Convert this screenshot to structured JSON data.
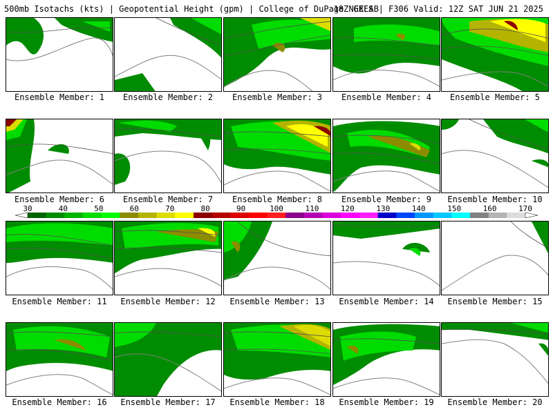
{
  "header": {
    "left": "500mb Isotachs (kts) | Geopotential Height (gpm) | College of DuPage NEXLAB",
    "right": "18Z GEFS | F306 Valid: 12Z SAT JUN 21 2025"
  },
  "colorbar": {
    "tick_labels": [
      "30",
      "40",
      "50",
      "60",
      "70",
      "80",
      "90",
      "100",
      "110",
      "120",
      "130",
      "140",
      "150",
      "160",
      "170"
    ],
    "colors": [
      "#006400",
      "#008c00",
      "#00b400",
      "#00dc00",
      "#00ff00",
      "#8c8c00",
      "#b4b400",
      "#dcdc00",
      "#ffff00",
      "#8c0000",
      "#b40000",
      "#dc0000",
      "#ff0000",
      "#ff1e1e",
      "#8c008c",
      "#b400b4",
      "#dc00dc",
      "#ff00ff",
      "#ff1eff",
      "#0000c8",
      "#0046ff",
      "#0096ff",
      "#00c8ff",
      "#00ffff",
      "#828282",
      "#b4b4b4",
      "#dcdcdc"
    ]
  },
  "panels": [
    {
      "label": "Ensemble Member: 1"
    },
    {
      "label": "Ensemble Member: 2"
    },
    {
      "label": "Ensemble Member: 3"
    },
    {
      "label": "Ensemble Member: 4"
    },
    {
      "label": "Ensemble Member: 5"
    },
    {
      "label": "Ensemble Member: 6"
    },
    {
      "label": "Ensemble Member: 7"
    },
    {
      "label": "Ensemble Member: 8"
    },
    {
      "label": "Ensemble Member: 9"
    },
    {
      "label": "Ensemble Member: 10"
    },
    {
      "label": "Ensemble Member: 11"
    },
    {
      "label": "Ensemble Member: 12"
    },
    {
      "label": "Ensemble Member: 13"
    },
    {
      "label": "Ensemble Member: 14"
    },
    {
      "label": "Ensemble Member: 15"
    },
    {
      "label": "Ensemble Member: 16"
    },
    {
      "label": "Ensemble Member: 17"
    },
    {
      "label": "Ensemble Member: 18"
    },
    {
      "label": "Ensemble Member: 19"
    },
    {
      "label": "Ensemble Member: 20"
    }
  ],
  "map_colors": {
    "coastline": "#808080",
    "height_contour": "#505050",
    "speed_40": "#008c00",
    "speed_50": "#00b400",
    "speed_55": "#00dc00",
    "speed_60": "#8c8c00",
    "speed_65": "#b4b400",
    "speed_70": "#dcdc00",
    "speed_75": "#ffff00",
    "speed_80": "#8c0000"
  }
}
